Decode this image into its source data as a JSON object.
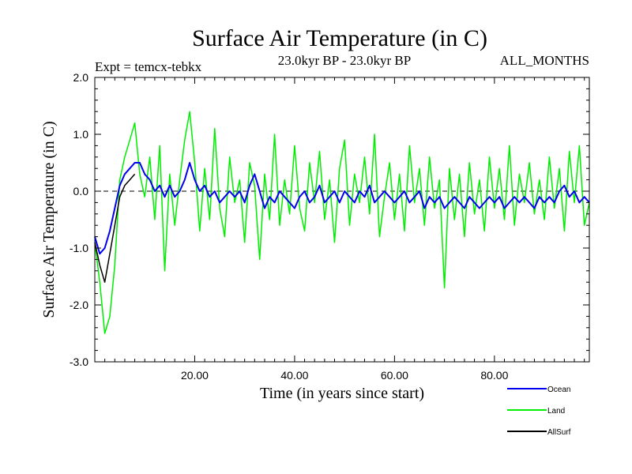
{
  "chart_data": {
    "type": "line",
    "title": "Surface Air Temperature (in C)",
    "subtitle_left": "Expt = temcx-tebkx",
    "subtitle_center": "23.0kyr BP - 23.0kyr BP",
    "subtitle_right": "ALL_MONTHS",
    "xlabel": "Time (in years since start)",
    "ylabel": "Surface Air Temperature (in C)",
    "xlim": [
      0,
      99
    ],
    "ylim": [
      -3.0,
      2.0
    ],
    "x_ticks": [
      20,
      40,
      60,
      80
    ],
    "x_tick_labels": [
      "20.00",
      "40.00",
      "60.00",
      "80.00"
    ],
    "y_ticks": [
      -3.0,
      -2.0,
      -1.0,
      0.0,
      1.0,
      2.0
    ],
    "y_tick_labels": [
      "-3.0",
      "-2.0",
      "-1.0",
      "0.0",
      "1.0",
      "2.0"
    ],
    "zero_line": true,
    "series": [
      {
        "name": "Land",
        "color": "#00ee00",
        "x": [
          0,
          1,
          2,
          3,
          4,
          5,
          6,
          7,
          8,
          9,
          10,
          11,
          12,
          13,
          14,
          15,
          16,
          17,
          18,
          19,
          20,
          21,
          22,
          23,
          24,
          25,
          26,
          27,
          28,
          29,
          30,
          31,
          32,
          33,
          34,
          35,
          36,
          37,
          38,
          39,
          40,
          41,
          42,
          43,
          44,
          45,
          46,
          47,
          48,
          49,
          50,
          51,
          52,
          53,
          54,
          55,
          56,
          57,
          58,
          59,
          60,
          61,
          62,
          63,
          64,
          65,
          66,
          67,
          68,
          69,
          70,
          71,
          72,
          73,
          74,
          75,
          76,
          77,
          78,
          79,
          80,
          81,
          82,
          83,
          84,
          85,
          86,
          87,
          88,
          89,
          90,
          91,
          92,
          93,
          94,
          95,
          96,
          97,
          98,
          99
        ],
        "values": [
          -0.9,
          -1.6,
          -2.5,
          -2.2,
          -1.3,
          0.2,
          0.6,
          0.9,
          1.2,
          0.3,
          -0.1,
          0.6,
          -0.5,
          0.8,
          -1.4,
          0.3,
          -0.6,
          0.2,
          0.9,
          1.4,
          0.5,
          -0.7,
          0.4,
          -0.5,
          1.1,
          -0.3,
          -0.8,
          0.6,
          -0.2,
          0.2,
          -0.9,
          0.5,
          0.1,
          -1.2,
          0.3,
          -0.5,
          1.0,
          -0.6,
          0.2,
          -0.4,
          0.8,
          -0.3,
          -0.7,
          0.5,
          -0.2,
          0.7,
          -0.5,
          0.2,
          -0.9,
          0.4,
          0.9,
          -0.6,
          0.3,
          -0.2,
          0.6,
          -0.4,
          1.0,
          -0.8,
          -0.1,
          0.5,
          -0.5,
          0.3,
          -0.7,
          0.8,
          -0.2,
          0.4,
          -0.6,
          0.6,
          -0.3,
          0.2,
          -1.7,
          0.4,
          -0.5,
          0.3,
          -0.8,
          0.5,
          -0.4,
          0.2,
          -0.7,
          0.6,
          -0.3,
          0.4,
          -0.5,
          0.8,
          -0.6,
          0.3,
          -0.2,
          0.5,
          -0.4,
          0.2,
          -0.5,
          0.6,
          -0.3,
          0.4,
          -0.7,
          0.7,
          -0.2,
          0.8,
          -0.6,
          -0.2
        ]
      },
      {
        "name": "Ocean",
        "color": "#0000ee",
        "x": [
          0,
          1,
          2,
          3,
          4,
          5,
          6,
          7,
          8,
          9,
          10,
          11,
          12,
          13,
          14,
          15,
          16,
          17,
          18,
          19,
          20,
          21,
          22,
          23,
          24,
          25,
          26,
          27,
          28,
          29,
          30,
          31,
          32,
          33,
          34,
          35,
          36,
          37,
          38,
          39,
          40,
          41,
          42,
          43,
          44,
          45,
          46,
          47,
          48,
          49,
          50,
          51,
          52,
          53,
          54,
          55,
          56,
          57,
          58,
          59,
          60,
          61,
          62,
          63,
          64,
          65,
          66,
          67,
          68,
          69,
          70,
          71,
          72,
          73,
          74,
          75,
          76,
          77,
          78,
          79,
          80,
          81,
          82,
          83,
          84,
          85,
          86,
          87,
          88,
          89,
          90,
          91,
          92,
          93,
          94,
          95,
          96,
          97,
          98,
          99
        ],
        "values": [
          -0.8,
          -1.1,
          -1.0,
          -0.7,
          -0.3,
          0.1,
          0.3,
          0.4,
          0.5,
          0.5,
          0.3,
          0.2,
          0.0,
          0.1,
          -0.1,
          0.1,
          -0.1,
          0.0,
          0.2,
          0.5,
          0.2,
          0.0,
          0.1,
          -0.1,
          0.0,
          -0.2,
          -0.1,
          0.0,
          -0.1,
          0.0,
          -0.2,
          0.1,
          0.3,
          0.0,
          -0.3,
          -0.1,
          -0.2,
          0.0,
          -0.1,
          -0.2,
          -0.3,
          -0.1,
          0.0,
          -0.2,
          -0.1,
          0.1,
          -0.2,
          -0.1,
          0.0,
          -0.2,
          0.0,
          -0.1,
          -0.2,
          0.0,
          -0.1,
          0.1,
          -0.2,
          -0.1,
          0.0,
          -0.1,
          -0.2,
          -0.1,
          0.0,
          -0.2,
          -0.1,
          0.0,
          -0.3,
          -0.1,
          -0.2,
          -0.1,
          -0.3,
          -0.2,
          -0.1,
          -0.2,
          -0.3,
          -0.1,
          -0.2,
          -0.3,
          -0.2,
          -0.1,
          -0.2,
          -0.1,
          -0.3,
          -0.2,
          -0.1,
          -0.2,
          -0.1,
          -0.2,
          -0.3,
          -0.1,
          -0.2,
          -0.1,
          -0.2,
          0.0,
          0.1,
          -0.1,
          0.0,
          -0.2,
          -0.1,
          -0.2
        ]
      },
      {
        "name": "AllSurf",
        "color": "#000000",
        "x": [
          0,
          1,
          2,
          3,
          4,
          5,
          6,
          7,
          8
        ],
        "values": [
          -0.9,
          -1.3,
          -1.6,
          -1.1,
          -0.6,
          -0.1,
          0.1,
          0.2,
          0.3
        ]
      }
    ],
    "legend": [
      {
        "name": "Ocean",
        "color": "#0000ee"
      },
      {
        "name": "Land",
        "color": "#00ee00"
      },
      {
        "name": "AllSurf",
        "color": "#000000"
      }
    ]
  }
}
